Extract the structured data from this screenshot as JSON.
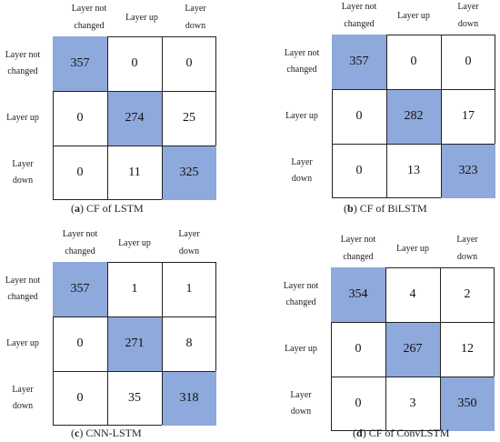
{
  "highlight_color": "#8ea9db",
  "chart_data": [
    {
      "type": "heatmap",
      "caption_letter": "a",
      "caption_text": " CF of LSTM",
      "col_labels": [
        [
          "Layer not",
          "changed"
        ],
        [
          "Layer up"
        ],
        [
          "Layer",
          "down"
        ]
      ],
      "row_labels": [
        [
          "Layer not",
          "changed"
        ],
        [
          "Layer up"
        ],
        [
          "Layer",
          "down"
        ]
      ],
      "values": [
        [
          357,
          0,
          0
        ],
        [
          0,
          274,
          25
        ],
        [
          0,
          11,
          325
        ]
      ]
    },
    {
      "type": "heatmap",
      "caption_letter": "b",
      "caption_text": " CF of BiLSTM",
      "col_labels": [
        [
          "Layer not",
          "changed"
        ],
        [
          "Layer up"
        ],
        [
          "Layer",
          "down"
        ]
      ],
      "row_labels": [
        [
          "Layer not",
          "changed"
        ],
        [
          "Layer up"
        ],
        [
          "Layer",
          "down"
        ]
      ],
      "values": [
        [
          357,
          0,
          0
        ],
        [
          0,
          282,
          17
        ],
        [
          0,
          13,
          323
        ]
      ]
    },
    {
      "type": "heatmap",
      "caption_letter": "c",
      "caption_text": " CNN-LSTM",
      "col_labels": [
        [
          "Layer not",
          "changed"
        ],
        [
          "Layer up"
        ],
        [
          "Layer",
          "down"
        ]
      ],
      "row_labels": [
        [
          "Layer not",
          "changed"
        ],
        [
          "Layer up"
        ],
        [
          "Layer",
          "down"
        ]
      ],
      "values": [
        [
          357,
          1,
          1
        ],
        [
          0,
          271,
          8
        ],
        [
          0,
          35,
          318
        ]
      ]
    },
    {
      "type": "heatmap",
      "caption_letter": "d",
      "caption_text": " CF of ConvLSTM",
      "col_labels": [
        [
          "Layer not",
          "changed"
        ],
        [
          "Layer up"
        ],
        [
          "Layer",
          "down"
        ]
      ],
      "row_labels": [
        [
          "Layer not",
          "changed"
        ],
        [
          "Layer up"
        ],
        [
          "Layer",
          "down"
        ]
      ],
      "values": [
        [
          354,
          4,
          2
        ],
        [
          0,
          267,
          12
        ],
        [
          0,
          3,
          350
        ]
      ]
    }
  ]
}
